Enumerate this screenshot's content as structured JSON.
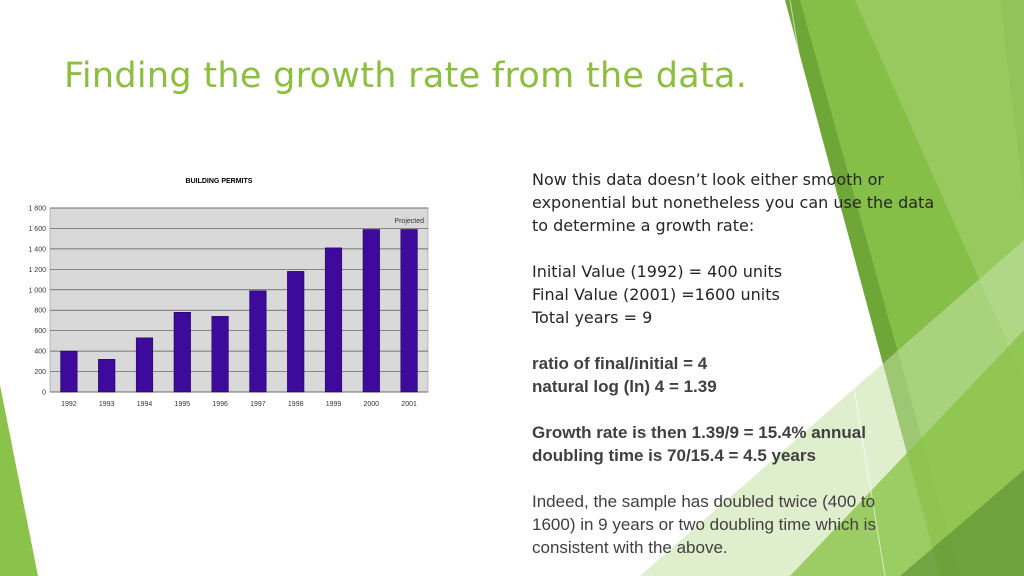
{
  "slide": {
    "title": "Finding the growth rate from the data.",
    "intro": [
      "Now this data doesn’t look either smooth or",
      "exponential but nonetheless you can use the data",
      "to determine a growth rate:"
    ],
    "values": [
      "Initial Value (1992) = 400 units",
      "Final Value (2001) =1600 units",
      "Total years = 9"
    ],
    "ratio": [
      "ratio of final/initial = 4",
      "natural log (ln) 4 = 1.39"
    ],
    "growth": [
      "Growth rate is then 1.39/9 = 15.4% annual",
      "doubling time is 70/15.4 = 4.5 years"
    ],
    "conclusion": [
      "Indeed, the sample has doubled twice (400 to",
      "1600) in 9 years or two doubling time which is",
      "consistent with the above."
    ]
  },
  "colors": {
    "title": "#8cbf3f",
    "bar": "#3d0a9c",
    "plot_bg": "#d9d9d9",
    "accent_green": "#7cb342"
  },
  "chart_data": {
    "type": "bar",
    "title": "BUILDING PERMITS",
    "categories": [
      "1992",
      "1993",
      "1994",
      "1995",
      "1996",
      "1997",
      "1998",
      "1999",
      "2000",
      "2001"
    ],
    "values": [
      400,
      320,
      530,
      780,
      740,
      990,
      1180,
      1410,
      1590,
      1590
    ],
    "yticks": [
      "0",
      "200",
      "400",
      "600",
      "800",
      "1 000",
      "1 200",
      "1 400",
      "1 600",
      "1 800"
    ],
    "ylim": [
      0,
      1800
    ],
    "annotation": "Projected",
    "xlabel": "",
    "ylabel": "",
    "grid": true,
    "legend": "none"
  }
}
